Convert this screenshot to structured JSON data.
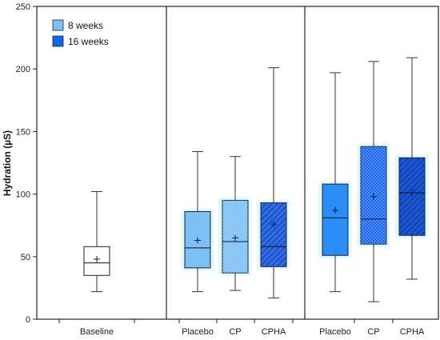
{
  "chart_data": {
    "type": "box",
    "ylabel": "Hydration (µS)",
    "ylim": [
      0,
      250
    ],
    "yticks": [
      0,
      50,
      100,
      150,
      200,
      250
    ],
    "grid": false,
    "legend_position": "top-left",
    "legend": [
      {
        "label": "8 weeks",
        "color": "#7cc0f5"
      },
      {
        "label": "16 weeks",
        "color": "#1565f0"
      }
    ],
    "groups": [
      {
        "label": "Baseline",
        "fill": "#ffffff",
        "pattern": "none",
        "min": 22,
        "q1": 35,
        "median": 45,
        "mean": 48,
        "q3": 58,
        "max": 102
      },
      {
        "label": "Placebo",
        "fill": "#7cc0f5",
        "pattern": "none",
        "min": 22,
        "q1": 41,
        "median": 57,
        "mean": 63,
        "q3": 86,
        "max": 134
      },
      {
        "label": "CP",
        "fill": "#7cc0f5",
        "pattern": "dots",
        "min": 23,
        "q1": 37,
        "median": 62,
        "mean": 65,
        "q3": 95,
        "max": 130
      },
      {
        "label": "CPHA",
        "fill": "#2f6be8",
        "pattern": "hatch",
        "min": 17,
        "q1": 42,
        "median": 58,
        "mean": 76,
        "q3": 93,
        "max": 201
      },
      {
        "label": "Placebo",
        "fill": "#2a8cf5",
        "pattern": "none",
        "min": 22,
        "q1": 51,
        "median": 81,
        "mean": 87,
        "q3": 108,
        "max": 197
      },
      {
        "label": "CP",
        "fill": "#1e6af0",
        "pattern": "dots",
        "min": 14,
        "q1": 60,
        "median": 80,
        "mean": 98,
        "q3": 138,
        "max": 206
      },
      {
        "label": "CPHA",
        "fill": "#1a55d6",
        "pattern": "hatch",
        "min": 32,
        "q1": 67,
        "median": 101,
        "mean": 101,
        "q3": 129,
        "max": 209
      }
    ]
  }
}
